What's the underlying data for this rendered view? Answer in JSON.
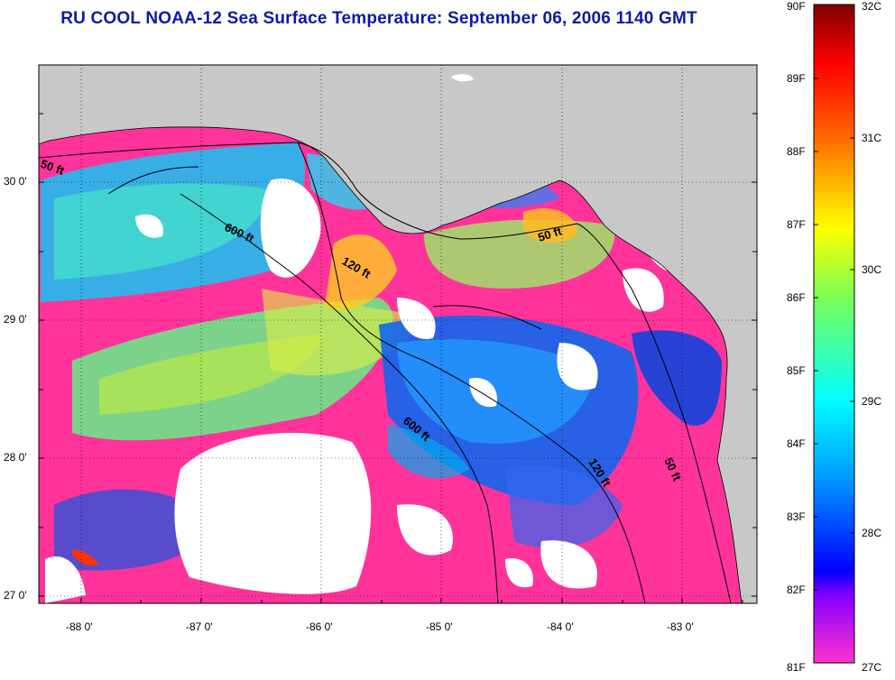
{
  "title": "RU COOL  NOAA-12  Sea Surface Temperature:  September 06, 2006 1140 GMT",
  "colors": {
    "land": "#c8c8c8",
    "title": "#0b1aa8",
    "cloud": "#ffffff",
    "cold": "#ff3399"
  },
  "map": {
    "lon_range": [
      -88.35,
      -82.45
    ],
    "lat_range": [
      26.95,
      30.85
    ],
    "lon_ticks": [
      "-88 0'",
      "-87 0'",
      "-86 0'",
      "-85 0'",
      "-84 0'",
      "-83 0'"
    ],
    "lat_ticks": [
      "30 0'",
      "29 0'",
      "28 0'",
      "27 0'"
    ],
    "grid": true,
    "contour_labels": [
      "50 ft",
      "600 ft",
      "120 ft",
      "50 ft",
      "600 ft",
      "120 ft",
      "50 ft"
    ]
  },
  "colorbar": {
    "fahrenheit_ticks": [
      "90F",
      "89F",
      "88F",
      "87F",
      "86F",
      "85F",
      "84F",
      "83F",
      "82F",
      "81F"
    ],
    "celsius_ticks": [
      "32C",
      "31C",
      "30C",
      "29C",
      "28C",
      "27C"
    ]
  }
}
